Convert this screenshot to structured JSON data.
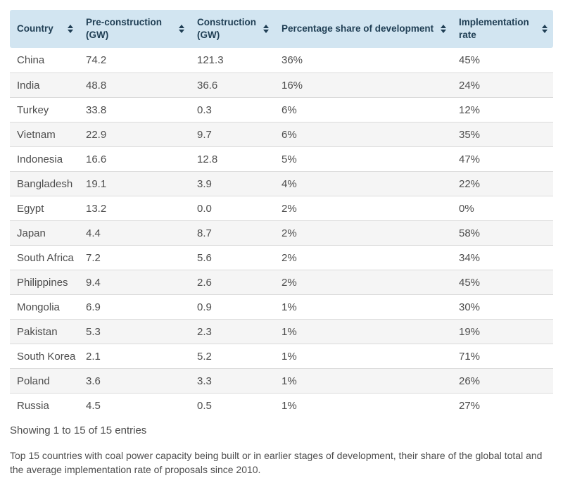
{
  "colors": {
    "header_bg": "#d2e5f1",
    "header_text": "#1f3e54",
    "body_text": "#4d4d4d",
    "row_alt_bg": "#f5f5f5",
    "divider": "#dbdbdb"
  },
  "table": {
    "column_keys": [
      "country",
      "pre_construction_gw",
      "construction_gw",
      "share_of_development",
      "implementation_rate"
    ],
    "columns": [
      {
        "label": "Country",
        "sort_icon": "sort-both-icon"
      },
      {
        "label": "Pre-construction (GW)",
        "sort_icon": "sort-both-icon"
      },
      {
        "label": "Construction (GW)",
        "sort_icon": "sort-both-icon"
      },
      {
        "label": "Percentage share of development",
        "sort_icon": "sort-both-icon"
      },
      {
        "label": "Implementation rate",
        "sort_icon": "sort-both-icon"
      }
    ],
    "rows": [
      {
        "country": "China",
        "pre_construction_gw": "74.2",
        "construction_gw": "121.3",
        "share_of_development": "36%",
        "implementation_rate": "45%"
      },
      {
        "country": "India",
        "pre_construction_gw": "48.8",
        "construction_gw": "36.6",
        "share_of_development": "16%",
        "implementation_rate": "24%"
      },
      {
        "country": "Turkey",
        "pre_construction_gw": "33.8",
        "construction_gw": "0.3",
        "share_of_development": "6%",
        "implementation_rate": "12%"
      },
      {
        "country": "Vietnam",
        "pre_construction_gw": "22.9",
        "construction_gw": "9.7",
        "share_of_development": "6%",
        "implementation_rate": "35%"
      },
      {
        "country": "Indonesia",
        "pre_construction_gw": "16.6",
        "construction_gw": "12.8",
        "share_of_development": "5%",
        "implementation_rate": "47%"
      },
      {
        "country": "Bangladesh",
        "pre_construction_gw": "19.1",
        "construction_gw": "3.9",
        "share_of_development": "4%",
        "implementation_rate": "22%"
      },
      {
        "country": "Egypt",
        "pre_construction_gw": "13.2",
        "construction_gw": "0.0",
        "share_of_development": "2%",
        "implementation_rate": "0%"
      },
      {
        "country": "Japan",
        "pre_construction_gw": "4.4",
        "construction_gw": "8.7",
        "share_of_development": "2%",
        "implementation_rate": "58%"
      },
      {
        "country": "South Africa",
        "pre_construction_gw": "7.2",
        "construction_gw": "5.6",
        "share_of_development": "2%",
        "implementation_rate": "34%"
      },
      {
        "country": "Philippines",
        "pre_construction_gw": "9.4",
        "construction_gw": "2.6",
        "share_of_development": "2%",
        "implementation_rate": "45%"
      },
      {
        "country": "Mongolia",
        "pre_construction_gw": "6.9",
        "construction_gw": "0.9",
        "share_of_development": "1%",
        "implementation_rate": "30%"
      },
      {
        "country": "Pakistan",
        "pre_construction_gw": "5.3",
        "construction_gw": "2.3",
        "share_of_development": "1%",
        "implementation_rate": "19%"
      },
      {
        "country": "South Korea",
        "pre_construction_gw": "2.1",
        "construction_gw": "5.2",
        "share_of_development": "1%",
        "implementation_rate": "71%"
      },
      {
        "country": "Poland",
        "pre_construction_gw": "3.6",
        "construction_gw": "3.3",
        "share_of_development": "1%",
        "implementation_rate": "26%"
      },
      {
        "country": "Russia",
        "pre_construction_gw": "4.5",
        "construction_gw": "0.5",
        "share_of_development": "1%",
        "implementation_rate": "27%"
      }
    ]
  },
  "status_bar": {
    "showing_text": "Showing 1 to 15 of 15 entries"
  },
  "caption": "Top 15 countries with coal power capacity being built or in earlier stages of development, their share of the global total and the average implementation rate of proposals since 2010."
}
